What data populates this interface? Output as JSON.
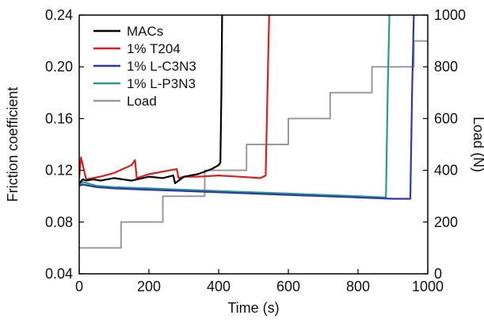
{
  "chart_data": {
    "type": "line",
    "xlabel": "Time (s)",
    "ylabel": "Friction coefficient",
    "y2label": "Load (N)",
    "xlim": [
      0,
      1000
    ],
    "ylim": [
      0.04,
      0.24
    ],
    "y2lim": [
      0,
      1000
    ],
    "x_ticks": [
      0,
      200,
      400,
      600,
      800,
      1000
    ],
    "y_ticks": [
      0.04,
      0.08,
      0.12,
      0.16,
      0.2,
      0.24
    ],
    "y2_ticks": [
      0,
      200,
      400,
      600,
      800,
      1000
    ],
    "x_tick_labels": [
      "0",
      "200",
      "400",
      "600",
      "800",
      "1000"
    ],
    "y_tick_labels": [
      "0.04",
      "0.08",
      "0.12",
      "0.16",
      "0.20",
      "0.24"
    ],
    "y2_tick_labels": [
      "0",
      "200",
      "400",
      "600",
      "800",
      "1000"
    ],
    "grid": false,
    "legend_position": "top-left",
    "series": [
      {
        "name": "MACs",
        "color": "#000000",
        "axis": "left",
        "x": [
          0,
          10,
          20,
          40,
          60,
          100,
          150,
          200,
          240,
          270,
          275,
          300,
          340,
          380,
          400,
          405,
          408,
          410
        ],
        "y": [
          0.11,
          0.113,
          0.112,
          0.113,
          0.112,
          0.114,
          0.112,
          0.115,
          0.114,
          0.116,
          0.11,
          0.115,
          0.117,
          0.121,
          0.124,
          0.126,
          0.18,
          0.24
        ]
      },
      {
        "name": "1% T204",
        "color": "#e01c1c",
        "axis": "left",
        "x": [
          0,
          5,
          20,
          60,
          100,
          150,
          160,
          165,
          200,
          260,
          280,
          285,
          300,
          340,
          400,
          460,
          520,
          535,
          540,
          545
        ],
        "y": [
          0.114,
          0.13,
          0.113,
          0.115,
          0.118,
          0.124,
          0.128,
          0.114,
          0.117,
          0.12,
          0.121,
          0.114,
          0.115,
          0.115,
          0.116,
          0.115,
          0.114,
          0.116,
          0.18,
          0.24
        ]
      },
      {
        "name": "1% L-C3N3",
        "color": "#2c3aa8",
        "axis": "left",
        "x": [
          0,
          10,
          50,
          100,
          200,
          300,
          400,
          500,
          600,
          700,
          800,
          900,
          940,
          950,
          955,
          960
        ],
        "y": [
          0.108,
          0.109,
          0.107,
          0.106,
          0.105,
          0.104,
          0.103,
          0.102,
          0.101,
          0.1,
          0.099,
          0.098,
          0.098,
          0.098,
          0.18,
          0.24
        ]
      },
      {
        "name": "1% L-P3N3",
        "color": "#2a9a8a",
        "axis": "left",
        "x": [
          0,
          10,
          50,
          100,
          200,
          300,
          400,
          500,
          600,
          700,
          800,
          880,
          885,
          890
        ],
        "y": [
          0.109,
          0.111,
          0.108,
          0.107,
          0.106,
          0.105,
          0.104,
          0.103,
          0.102,
          0.101,
          0.1,
          0.099,
          0.18,
          0.24
        ]
      },
      {
        "name": "Load",
        "color": "#9a9a9a",
        "axis": "right",
        "x": [
          0,
          120,
          120,
          240,
          240,
          360,
          360,
          480,
          480,
          600,
          600,
          720,
          720,
          840,
          840,
          960,
          960,
          1000
        ],
        "y": [
          100,
          100,
          200,
          200,
          300,
          300,
          400,
          400,
          500,
          500,
          600,
          600,
          700,
          700,
          800,
          800,
          900,
          900
        ]
      }
    ]
  }
}
